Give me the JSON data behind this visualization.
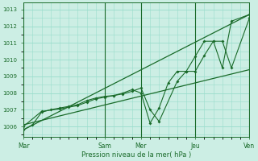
{
  "bg_color": "#cceee4",
  "grid_color": "#99ddcc",
  "line_color": "#1a6b2a",
  "xlabel": "Pression niveau de la mer( hPa )",
  "x_ticks_labels": [
    "Mar",
    "Sam",
    "Mer",
    "Jeu",
    "Ven"
  ],
  "x_ticks_pos": [
    0,
    9,
    13,
    19,
    25
  ],
  "ylim": [
    1005.4,
    1013.4
  ],
  "yticks": [
    1006,
    1007,
    1008,
    1009,
    1010,
    1011,
    1012,
    1013
  ],
  "series1_x": [
    0,
    1,
    2,
    3,
    4,
    5,
    6,
    7,
    8,
    9,
    10,
    11,
    12,
    13,
    14,
    15,
    16,
    17,
    18,
    19,
    20,
    21,
    22,
    23,
    25
  ],
  "series1_y": [
    1005.8,
    1006.1,
    1006.85,
    1007.0,
    1007.1,
    1007.2,
    1007.3,
    1007.55,
    1007.7,
    1007.8,
    1007.85,
    1008.0,
    1008.2,
    1008.0,
    1006.2,
    1007.1,
    1008.6,
    1009.3,
    1009.3,
    1010.2,
    1011.1,
    1011.1,
    1009.5,
    1012.3,
    1012.7
  ],
  "series2_x": [
    0,
    2,
    4,
    5,
    6,
    7,
    8,
    9,
    10,
    11,
    12,
    13,
    14,
    15,
    17,
    18,
    19,
    20,
    21,
    22,
    23,
    25
  ],
  "series2_y": [
    1006.0,
    1006.9,
    1007.05,
    1007.15,
    1007.25,
    1007.45,
    1007.65,
    1007.75,
    1007.85,
    1007.95,
    1008.1,
    1008.3,
    1007.0,
    1006.3,
    1008.7,
    1009.3,
    1009.3,
    1010.25,
    1011.1,
    1011.1,
    1009.5,
    1012.5
  ],
  "trend1_x": [
    0,
    25
  ],
  "trend1_y": [
    1005.8,
    1012.7
  ],
  "trend2_x": [
    0,
    25
  ],
  "trend2_y": [
    1006.1,
    1009.4
  ],
  "xlim": [
    0,
    25
  ],
  "vlines_x": [
    0,
    9,
    13,
    19,
    25
  ]
}
